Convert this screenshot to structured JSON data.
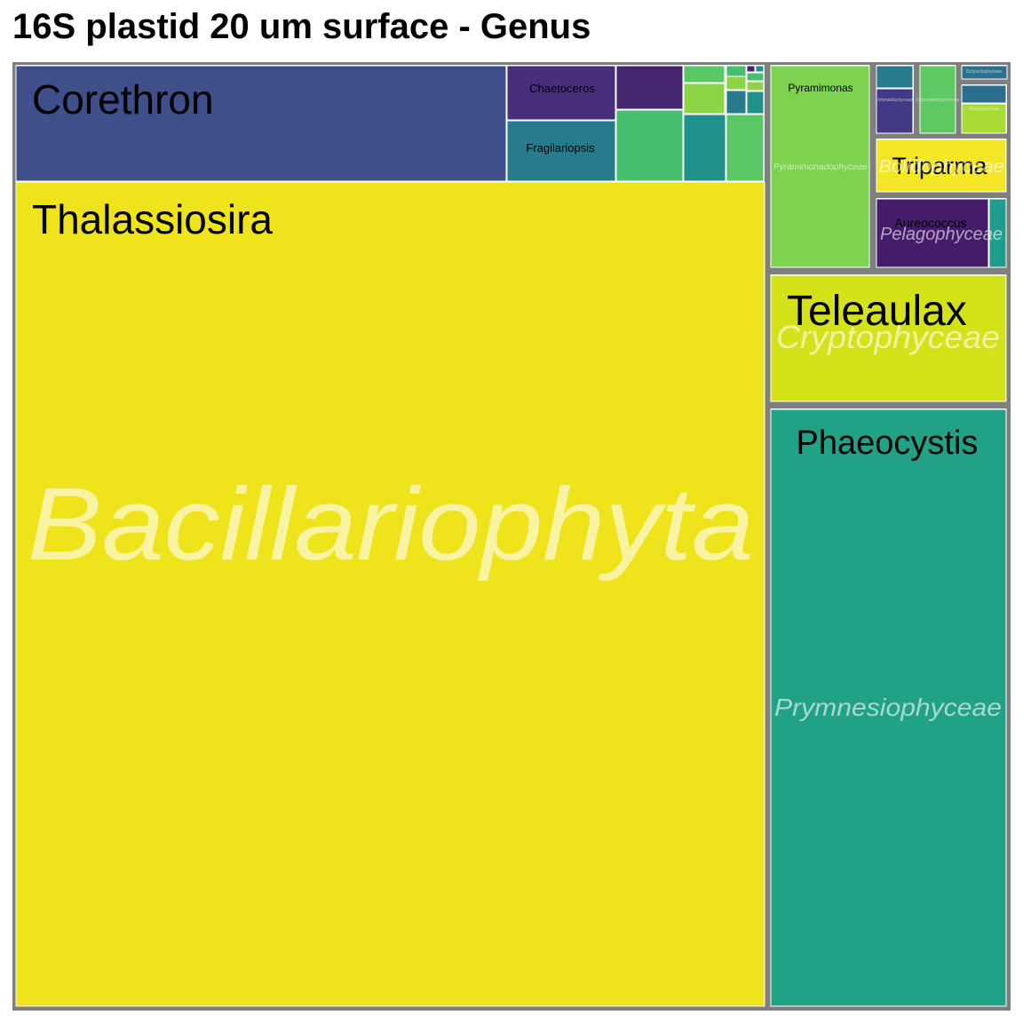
{
  "chart_data": {
    "type": "treemap",
    "title": "16S plastid 20 um surface - Genus",
    "groups": [
      {
        "name": "Bacillariophyta",
        "genera": [
          {
            "name": "Thalassiosira",
            "color": "#efe31b"
          },
          {
            "name": "Corethron",
            "color": "#3e4f8a"
          },
          {
            "name": "Chaetoceros",
            "color": "#482f7b"
          },
          {
            "name": "Fragilariopsis",
            "color": "#277b8d"
          },
          {
            "name": "",
            "color": "#46276f"
          },
          {
            "name": "",
            "color": "#46c06f"
          },
          {
            "name": "",
            "color": "#1f918a"
          },
          {
            "name": "",
            "color": "#59c864"
          },
          {
            "name": "",
            "color": "#8ed545"
          }
        ]
      },
      {
        "name": "Pyramimonadophyceae",
        "genera": [
          {
            "name": "Pyramimonas",
            "color": "#7dd350"
          }
        ]
      },
      {
        "name": "Bolidophyceae",
        "genera": [
          {
            "name": "Triparma",
            "color": "#f3e626"
          }
        ]
      },
      {
        "name": "Pelagophyceae",
        "genera": [
          {
            "name": "Aureococcus",
            "color": "#441c6a"
          },
          {
            "name": "",
            "color": "#1f9d8a"
          }
        ]
      },
      {
        "name": "Cryptophyceae",
        "genera": [
          {
            "name": "Teleaulax",
            "color": "#d4e21a"
          }
        ]
      },
      {
        "name": "Prymnesiophyceae",
        "genera": [
          {
            "name": "Phaeocystis",
            "color": "#21a286"
          }
        ]
      },
      {
        "name": "Mamiellophyceae",
        "genera": [
          {
            "name": "",
            "color": "#277b8d"
          },
          {
            "name": "",
            "color": "#423a84"
          }
        ]
      },
      {
        "name": "Chlorodendrophyceae",
        "genera": [
          {
            "name": "",
            "color": "#5ec962"
          }
        ]
      },
      {
        "name": "Dictyochophyceae",
        "genera": [
          {
            "name": "",
            "color": "#2c728e"
          }
        ]
      },
      {
        "name": "Pinguiophyceae",
        "genera": [
          {
            "name": "",
            "color": "#2c6e8e"
          },
          {
            "name": "",
            "color": "#a8db34"
          }
        ]
      }
    ]
  }
}
